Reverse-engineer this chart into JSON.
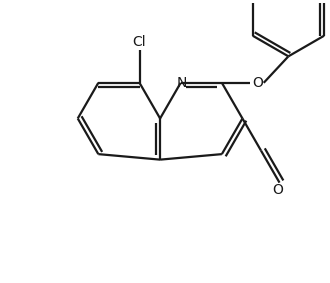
{
  "background": "#ffffff",
  "line_color": "#1a1a1a",
  "line_width": 1.6,
  "figsize": [
    3.3,
    2.83
  ],
  "dpi": 100,
  "xlim": [
    0,
    330
  ],
  "ylim": [
    0,
    283
  ]
}
